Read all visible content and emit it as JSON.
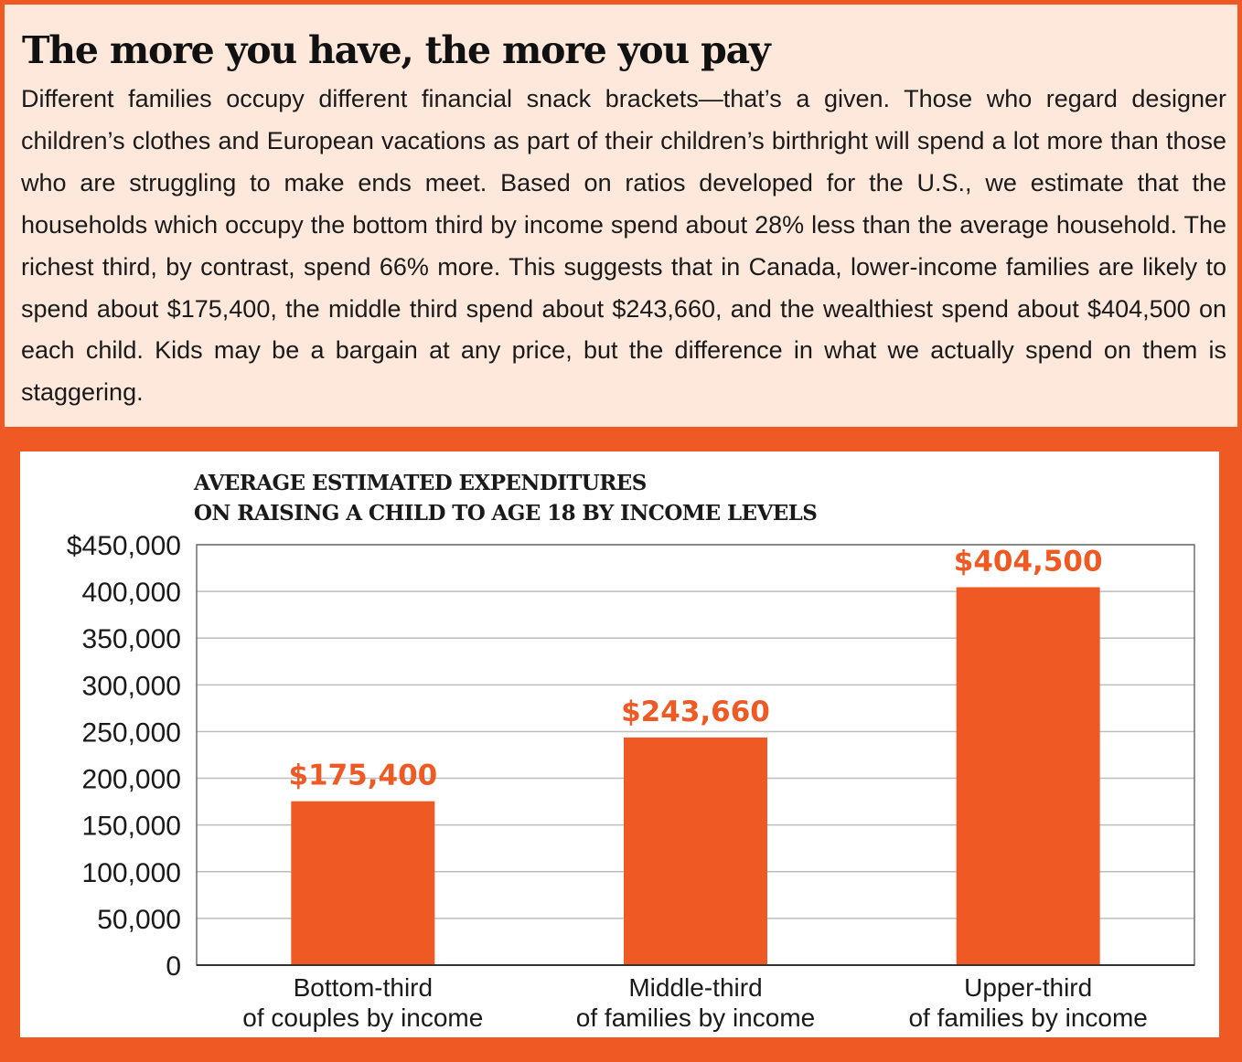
{
  "header": {
    "title": "The more you have, the more you pay",
    "body": "Different families occupy different financial snack brackets—that’s a given. Those who regard designer children’s clothes and European vacations as part of their children’s birthright will spend a lot more than those who are struggling to make ends meet. Based on ratios developed for the U.S., we estimate that the households which occupy the bottom third by income spend about 28% less than the average household. The richest third, by contrast, spend 66% more. This suggests that in Canada, lower-income families are likely to spend about $175,400, the middle third spend about $243,660, and the wealthiest spend about $404,500 on each child. Kids may be a bargain at any price, but the difference in what we actually spend on them is staggering."
  },
  "colors": {
    "accent": "#EF5A24",
    "panel_background": "#FDE8DB",
    "chart_background": "#FFFFFF",
    "grid": "#BDBDBD"
  },
  "chart_data": {
    "type": "bar",
    "title_lines": [
      "AVERAGE ESTIMATED EXPENDITURES",
      "ON RAISING A CHILD TO AGE 18 BY INCOME LEVELS"
    ],
    "categories": [
      [
        "Bottom-third",
        "of couples by income"
      ],
      [
        "Middle-third",
        "of families by income"
      ],
      [
        "Upper-third",
        "of families by income"
      ]
    ],
    "values": [
      175400,
      243660,
      404500
    ],
    "data_labels": [
      "$175,400",
      "$243,660",
      "$404,500"
    ],
    "ylim": [
      0,
      450000
    ],
    "yticks": [
      0,
      50000,
      100000,
      150000,
      200000,
      250000,
      300000,
      350000,
      400000,
      450000
    ],
    "ytick_labels": [
      "0",
      "50,000",
      "100,000",
      "150,000",
      "200,000",
      "250,000",
      "300,000",
      "350,000",
      "400,000",
      "$450,000"
    ],
    "grid": true,
    "bar_color": "#EF5A24"
  }
}
